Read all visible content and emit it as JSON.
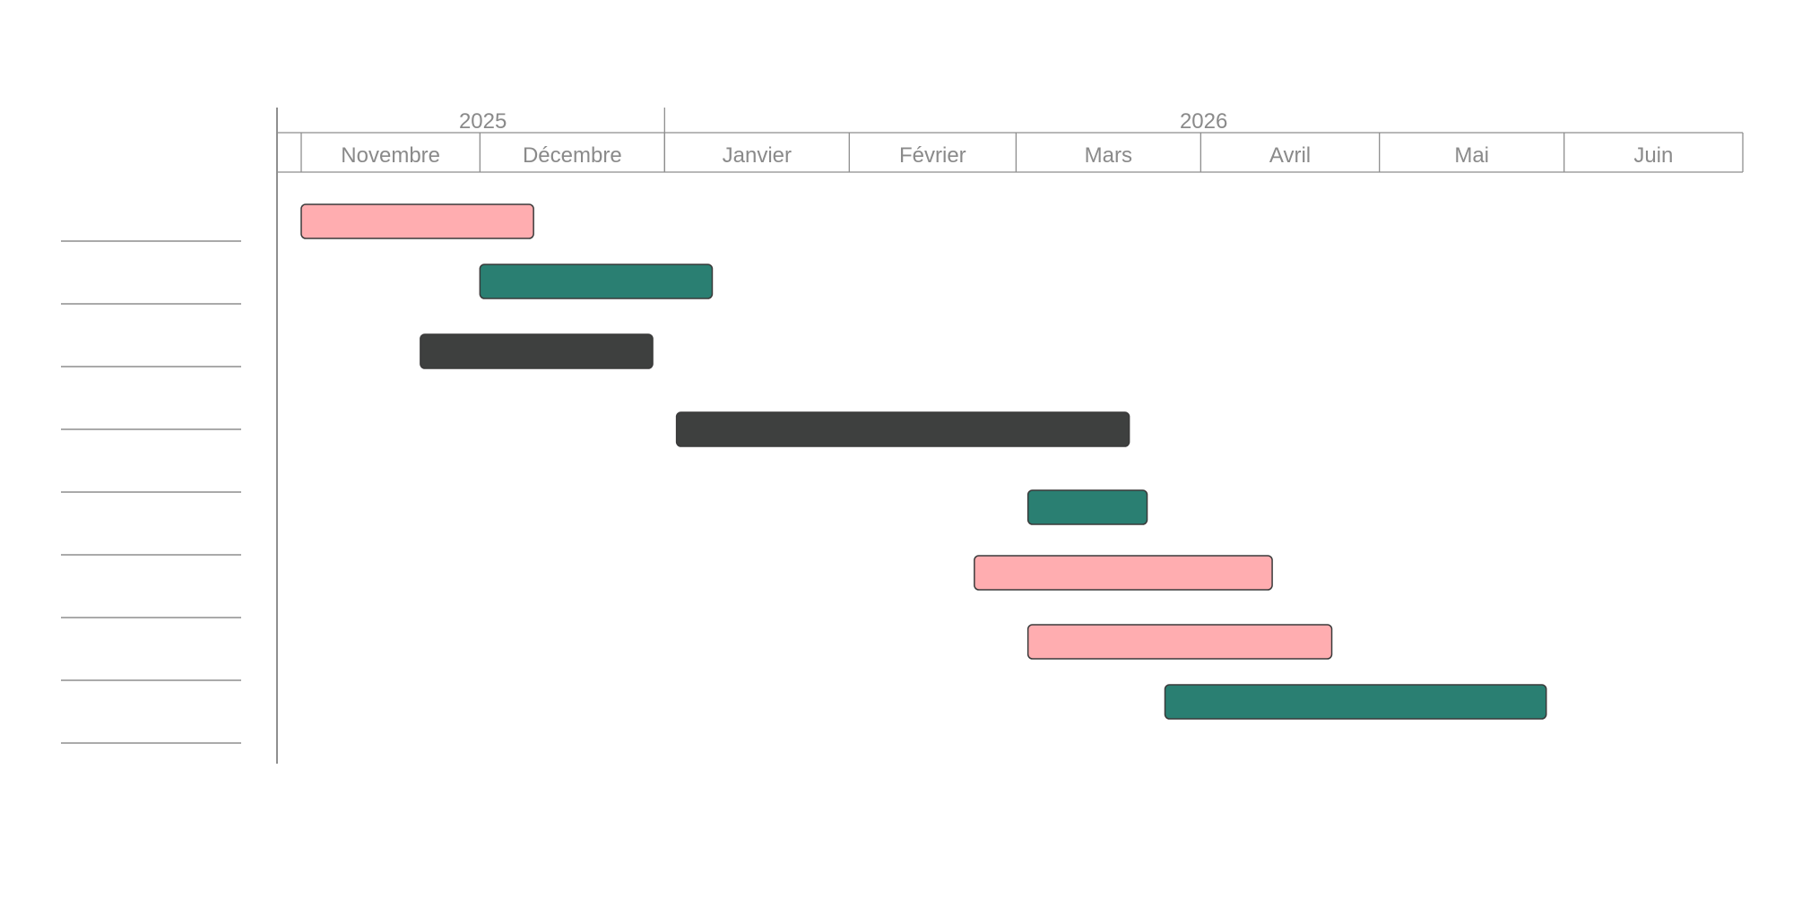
{
  "chart_data": {
    "type": "gantt",
    "years": [
      {
        "label": "2025",
        "start": "2025-11-01",
        "end": "2026-01-01"
      },
      {
        "label": "2026",
        "start": "2026-01-01",
        "end": "2026-07-01"
      }
    ],
    "months": [
      {
        "label": "Novembre",
        "start": "2025-11-01",
        "end": "2025-12-01"
      },
      {
        "label": "Décembre",
        "start": "2025-12-01",
        "end": "2026-01-01"
      },
      {
        "label": "Janvier",
        "start": "2026-01-01",
        "end": "2026-02-01"
      },
      {
        "label": "Février",
        "start": "2026-02-01",
        "end": "2026-03-01"
      },
      {
        "label": "Mars",
        "start": "2026-03-01",
        "end": "2026-04-01"
      },
      {
        "label": "Avril",
        "start": "2026-04-01",
        "end": "2026-05-01"
      },
      {
        "label": "Mai",
        "start": "2026-05-01",
        "end": "2026-06-01"
      },
      {
        "label": "Juin",
        "start": "2026-06-01",
        "end": "2026-07-01"
      }
    ],
    "axis_range": [
      "2025-10-27",
      "2026-07-01"
    ],
    "row_labels": [
      "",
      "",
      "",
      "",
      "",
      "",
      "",
      ""
    ],
    "tasks": [
      {
        "row": 0,
        "start": "2025-11-01",
        "end": "2025-12-10",
        "color": "#ffadb0"
      },
      {
        "row": 1,
        "start": "2025-12-01",
        "end": "2026-01-09",
        "color": "#2a7f72"
      },
      {
        "row": 2,
        "start": "2025-11-21",
        "end": "2025-12-30",
        "color": "#3e403f"
      },
      {
        "row": 3,
        "start": "2026-01-03",
        "end": "2026-03-20",
        "color": "#3e403f"
      },
      {
        "row": 4,
        "start": "2026-03-03",
        "end": "2026-03-23",
        "color": "#2a7f72"
      },
      {
        "row": 5,
        "start": "2026-02-22",
        "end": "2026-04-13",
        "color": "#ffadb0"
      },
      {
        "row": 6,
        "start": "2026-03-03",
        "end": "2026-04-23",
        "color": "#ffadb0"
      },
      {
        "row": 7,
        "start": "2026-03-26",
        "end": "2026-05-29",
        "color": "#2a7f72"
      }
    ]
  }
}
